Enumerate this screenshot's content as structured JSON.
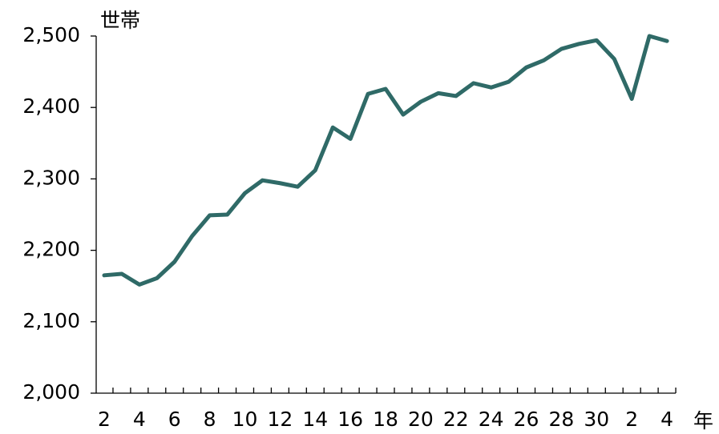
{
  "chart_data": {
    "type": "line",
    "y_label": "世帯",
    "x_label": "年",
    "categories": [
      "2",
      null,
      "4",
      null,
      "6",
      null,
      "8",
      null,
      "10",
      null,
      "12",
      null,
      "14",
      null,
      "16",
      null,
      "18",
      null,
      "20",
      null,
      "22",
      null,
      "24",
      null,
      "26",
      null,
      "28",
      null,
      "30",
      null,
      "2",
      null,
      "4"
    ],
    "series": [
      {
        "name": "世帯",
        "color": "#2f6a67",
        "values": [
          2165,
          2167,
          2152,
          2161,
          2184,
          2220,
          2249,
          2250,
          2280,
          2298,
          2294,
          2289,
          2312,
          2372,
          2356,
          2419,
          2426,
          2390,
          2408,
          2420,
          2416,
          2434,
          2428,
          2436,
          2456,
          2466,
          2482,
          2489,
          2494,
          2468,
          2412,
          2500,
          2493
        ]
      }
    ],
    "ylim": [
      2000,
      2500
    ],
    "yticks": [
      {
        "value": 2000,
        "label": "2,000"
      },
      {
        "value": 2100,
        "label": "2,100"
      },
      {
        "value": 2200,
        "label": "2,200"
      },
      {
        "value": 2300,
        "label": "2,300"
      },
      {
        "value": 2400,
        "label": "2,400"
      },
      {
        "value": 2500,
        "label": "2,500"
      }
    ]
  }
}
